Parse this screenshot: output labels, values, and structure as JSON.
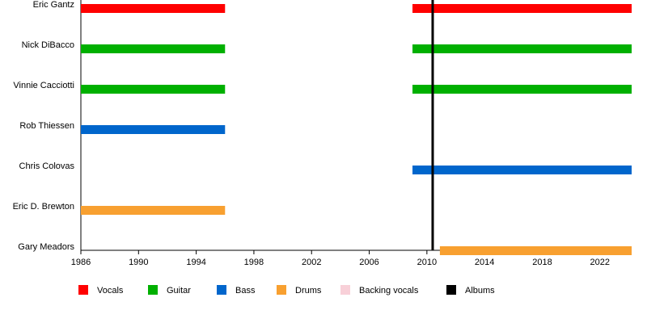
{
  "chart_data": {
    "type": "timeline",
    "categories": [
      "Eric Gantz",
      "Nick DiBacco",
      "Vinnie Cacciotti",
      "Rob Thiessen",
      "Chris Colovas",
      "Eric D. Brewton",
      "Gary Meadors"
    ],
    "series": [
      {
        "name": "Vocals",
        "color": "#ff0000",
        "values": [
          [
            [
              1986,
              1996
            ],
            [
              2009,
              2024.2
            ]
          ],
          [],
          [],
          [],
          [],
          [],
          []
        ]
      },
      {
        "name": "Guitar",
        "color": "#00b000",
        "values": [
          [],
          [
            [
              1986,
              1996
            ],
            [
              2009,
              2024.2
            ]
          ],
          [
            [
              1986,
              1996
            ],
            [
              2009,
              2024.2
            ]
          ],
          [],
          [],
          [],
          []
        ]
      },
      {
        "name": "Bass",
        "color": "#0066cc",
        "values": [
          [],
          [],
          [],
          [
            [
              1986,
              1996
            ]
          ],
          [
            [
              2009,
              2024.2
            ]
          ],
          [],
          []
        ]
      },
      {
        "name": "Drums",
        "color": "#f8a030",
        "values": [
          [],
          [],
          [],
          [],
          [],
          [
            [
              1986,
              1996
            ]
          ],
          [
            [
              2010.9,
              2024.2
            ]
          ]
        ]
      },
      {
        "name": "Backing vocals",
        "color": "#f8d0d8",
        "values": [
          [],
          [],
          [],
          [],
          [],
          [],
          []
        ]
      }
    ],
    "events": {
      "name": "Albums",
      "color": "#000000",
      "values": [
        2010.4
      ]
    },
    "xlim": [
      1986,
      2024.2
    ],
    "xticks": [
      1986,
      1990,
      1994,
      1998,
      2002,
      2006,
      2010,
      2014,
      2018,
      2022
    ]
  }
}
